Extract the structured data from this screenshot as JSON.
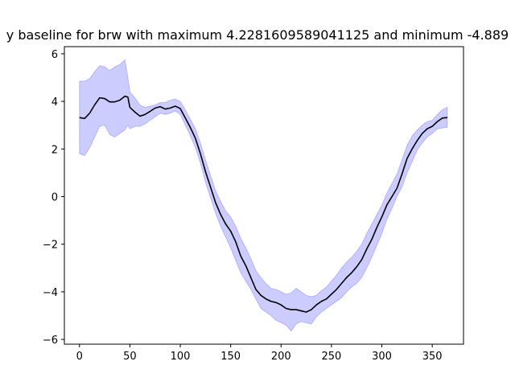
{
  "chart_data": {
    "type": "area",
    "title": "y baseline for brw with maximum 4.2281609589041125 and minimum -4.889",
    "xlabel": "",
    "ylabel": "",
    "xlim": [
      -15,
      381
    ],
    "ylim": [
      -6.2,
      6.3
    ],
    "xticks": [
      0,
      50,
      100,
      150,
      200,
      250,
      300,
      350
    ],
    "yticks": [
      -6,
      -4,
      -2,
      0,
      2,
      4,
      6
    ],
    "grid": false,
    "legend": "none",
    "colors": {
      "line": "#000000",
      "band": "#0000ff",
      "band_opacity": 0.2
    },
    "series": [
      {
        "x": [
          0,
          5,
          10,
          15,
          20,
          25,
          30,
          35,
          40,
          45,
          48,
          50,
          55,
          60,
          65,
          70,
          75,
          80,
          85,
          90,
          95,
          100,
          105,
          110,
          115,
          120,
          125,
          130,
          135,
          140,
          145,
          150,
          155,
          160,
          165,
          170,
          175,
          180,
          185,
          190,
          195,
          200,
          205,
          210,
          215,
          220,
          225,
          230,
          235,
          240,
          245,
          250,
          255,
          260,
          265,
          270,
          275,
          280,
          285,
          290,
          295,
          300,
          305,
          310,
          315,
          320,
          325,
          330,
          335,
          340,
          345,
          350,
          355,
          360,
          365
        ],
        "mean": [
          3.32,
          3.28,
          3.5,
          3.85,
          4.15,
          4.12,
          3.98,
          3.98,
          4.05,
          4.22,
          4.18,
          3.75,
          3.55,
          3.38,
          3.45,
          3.58,
          3.72,
          3.78,
          3.68,
          3.72,
          3.8,
          3.7,
          3.3,
          2.9,
          2.45,
          1.8,
          1.05,
          0.4,
          -0.25,
          -0.75,
          -1.15,
          -1.45,
          -1.9,
          -2.5,
          -2.9,
          -3.4,
          -3.9,
          -4.15,
          -4.3,
          -4.4,
          -4.45,
          -4.55,
          -4.7,
          -4.75,
          -4.75,
          -4.8,
          -4.85,
          -4.75,
          -4.55,
          -4.4,
          -4.3,
          -4.1,
          -3.9,
          -3.65,
          -3.4,
          -3.2,
          -2.95,
          -2.65,
          -2.2,
          -1.8,
          -1.3,
          -0.85,
          -0.35,
          0.0,
          0.35,
          0.95,
          1.6,
          2.0,
          2.35,
          2.65,
          2.85,
          2.95,
          3.15,
          3.3,
          3.32
        ],
        "upper": [
          4.85,
          4.85,
          4.95,
          5.25,
          5.5,
          5.45,
          5.3,
          5.45,
          5.55,
          5.75,
          5.0,
          4.4,
          4.15,
          3.85,
          3.75,
          3.8,
          3.85,
          3.95,
          3.95,
          4.05,
          4.1,
          4.0,
          3.65,
          3.25,
          2.85,
          2.25,
          1.55,
          0.9,
          0.25,
          -0.2,
          -0.6,
          -0.85,
          -1.25,
          -1.75,
          -2.15,
          -2.6,
          -3.1,
          -3.4,
          -3.65,
          -3.85,
          -3.9,
          -4.0,
          -4.1,
          -4.05,
          -3.85,
          -4.0,
          -4.15,
          -4.2,
          -4.15,
          -3.95,
          -3.8,
          -3.55,
          -3.3,
          -3.0,
          -2.75,
          -2.55,
          -2.3,
          -2.0,
          -1.55,
          -1.15,
          -0.75,
          -0.35,
          0.15,
          0.55,
          0.95,
          1.55,
          2.15,
          2.55,
          2.8,
          3.0,
          3.15,
          3.2,
          3.45,
          3.65,
          3.75
        ],
        "lower": [
          1.8,
          1.72,
          2.05,
          2.5,
          2.95,
          3.0,
          2.6,
          2.5,
          2.65,
          2.8,
          3.0,
          2.85,
          2.95,
          2.95,
          3.05,
          3.2,
          3.35,
          3.5,
          3.45,
          3.5,
          3.6,
          3.45,
          3.0,
          2.55,
          2.05,
          1.4,
          0.6,
          -0.05,
          -0.7,
          -1.25,
          -1.7,
          -2.15,
          -2.7,
          -3.2,
          -3.55,
          -3.9,
          -4.3,
          -4.7,
          -4.85,
          -5.0,
          -5.2,
          -5.3,
          -5.4,
          -5.65,
          -5.35,
          -5.25,
          -5.3,
          -5.35,
          -5.05,
          -4.85,
          -4.7,
          -4.55,
          -4.4,
          -4.25,
          -4.0,
          -3.8,
          -3.65,
          -3.4,
          -3.0,
          -2.55,
          -2.05,
          -1.55,
          -0.95,
          -0.5,
          0.0,
          0.4,
          1.0,
          1.45,
          1.95,
          2.25,
          2.5,
          2.65,
          2.85,
          2.88,
          2.92
        ]
      }
    ]
  }
}
